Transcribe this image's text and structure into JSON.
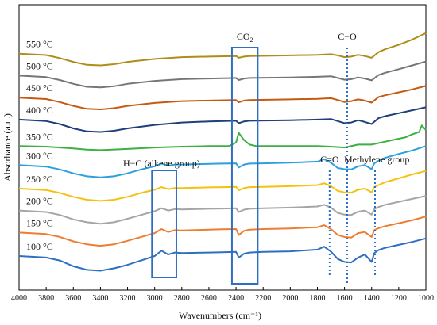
{
  "chart_data": {
    "type": "line",
    "title": "",
    "xlabel": "Wavenumbers (cm⁻¹)",
    "ylabel": "Absorbance (a.u.)",
    "xlim": [
      4000,
      1000
    ],
    "x_reversed": true,
    "x_ticks": [
      "4000",
      "3800",
      "3600",
      "3400",
      "3200",
      "3000",
      "2800",
      "2600",
      "2400",
      "2200",
      "2000",
      "1800",
      "1600",
      "1400",
      "1200",
      "1000"
    ],
    "y_ticks_shown": false,
    "grid": false,
    "series": [
      {
        "name": "100 °C",
        "color": "#2f6fc0",
        "offset": 0.5,
        "x": [
          4000,
          3800,
          3700,
          3600,
          3500,
          3400,
          3300,
          3200,
          3100,
          3000,
          2950,
          2900,
          2850,
          2800,
          2600,
          2500,
          2400,
          2380,
          2340,
          2300,
          2200,
          2000,
          1800,
          1750,
          1700,
          1650,
          1600,
          1550,
          1500,
          1450,
          1400,
          1380,
          1350,
          1300,
          1200,
          1100,
          1000
        ],
        "y": [
          0.5,
          0.45,
          0.35,
          0.15,
          0.03,
          0.0,
          0.08,
          0.2,
          0.35,
          0.5,
          0.68,
          0.55,
          0.62,
          0.6,
          0.62,
          0.63,
          0.64,
          0.45,
          0.58,
          0.62,
          0.64,
          0.66,
          0.72,
          0.82,
          0.65,
          0.4,
          0.3,
          0.28,
          0.45,
          0.55,
          0.3,
          0.6,
          0.7,
          0.78,
          0.88,
          0.98,
          1.1
        ]
      },
      {
        "name": "150 °C",
        "color": "#ed7d31",
        "offset": 1.3,
        "x": [
          4000,
          3800,
          3700,
          3600,
          3500,
          3400,
          3300,
          3200,
          3100,
          3000,
          2950,
          2900,
          2850,
          2800,
          2600,
          2500,
          2400,
          2380,
          2340,
          2300,
          2200,
          2000,
          1800,
          1750,
          1700,
          1650,
          1600,
          1550,
          1500,
          1450,
          1400,
          1380,
          1350,
          1300,
          1200,
          1100,
          1000
        ],
        "y": [
          0.5,
          0.45,
          0.35,
          0.2,
          0.1,
          0.05,
          0.1,
          0.22,
          0.35,
          0.48,
          0.62,
          0.52,
          0.58,
          0.57,
          0.6,
          0.61,
          0.62,
          0.42,
          0.56,
          0.6,
          0.62,
          0.64,
          0.68,
          0.75,
          0.62,
          0.42,
          0.35,
          0.33,
          0.48,
          0.52,
          0.35,
          0.58,
          0.65,
          0.72,
          0.82,
          0.92,
          1.05
        ]
      },
      {
        "name": "200 °C",
        "color": "#a5a5a5",
        "offset": 2.05,
        "x": [
          4000,
          3800,
          3700,
          3600,
          3500,
          3400,
          3300,
          3200,
          3100,
          3000,
          2950,
          2900,
          2850,
          2800,
          2600,
          2500,
          2400,
          2380,
          2340,
          2300,
          2200,
          2000,
          1800,
          1750,
          1700,
          1650,
          1600,
          1550,
          1500,
          1450,
          1400,
          1380,
          1350,
          1300,
          1200,
          1100,
          1000
        ],
        "y": [
          0.5,
          0.45,
          0.35,
          0.2,
          0.1,
          0.05,
          0.1,
          0.22,
          0.35,
          0.48,
          0.58,
          0.5,
          0.55,
          0.54,
          0.56,
          0.57,
          0.58,
          0.45,
          0.53,
          0.56,
          0.58,
          0.6,
          0.64,
          0.7,
          0.6,
          0.42,
          0.36,
          0.35,
          0.46,
          0.5,
          0.36,
          0.55,
          0.62,
          0.7,
          0.8,
          0.9,
          1.0
        ]
      },
      {
        "name": "250 °C",
        "color": "#f4c20d",
        "offset": 2.8,
        "x": [
          4000,
          3800,
          3700,
          3600,
          3500,
          3400,
          3300,
          3200,
          3100,
          3000,
          2950,
          2900,
          2850,
          2800,
          2600,
          2500,
          2400,
          2380,
          2340,
          2300,
          2200,
          2000,
          1800,
          1750,
          1700,
          1650,
          1600,
          1550,
          1500,
          1450,
          1400,
          1380,
          1350,
          1300,
          1200,
          1100,
          1000
        ],
        "y": [
          0.5,
          0.45,
          0.35,
          0.22,
          0.12,
          0.08,
          0.12,
          0.22,
          0.35,
          0.46,
          0.55,
          0.48,
          0.52,
          0.52,
          0.54,
          0.55,
          0.56,
          0.44,
          0.52,
          0.55,
          0.56,
          0.58,
          0.62,
          0.68,
          0.58,
          0.42,
          0.37,
          0.36,
          0.46,
          0.5,
          0.37,
          0.55,
          0.62,
          0.72,
          0.85,
          0.98,
          1.1
        ]
      },
      {
        "name": "300 °C",
        "color": "#2aa1dd",
        "offset": 3.6,
        "x": [
          4000,
          3800,
          3700,
          3600,
          3500,
          3400,
          3300,
          3200,
          3100,
          3000,
          2950,
          2900,
          2850,
          2800,
          2600,
          2500,
          2400,
          2380,
          2340,
          2300,
          2200,
          2000,
          1800,
          1750,
          1700,
          1650,
          1600,
          1550,
          1500,
          1450,
          1400,
          1380,
          1350,
          1300,
          1200,
          1100,
          1000
        ],
        "y": [
          0.5,
          0.45,
          0.35,
          0.22,
          0.12,
          0.08,
          0.12,
          0.22,
          0.35,
          0.46,
          0.55,
          0.48,
          0.52,
          0.52,
          0.54,
          0.55,
          0.56,
          0.42,
          0.52,
          0.55,
          0.56,
          0.58,
          0.62,
          0.7,
          0.58,
          0.4,
          0.36,
          0.35,
          0.46,
          0.5,
          0.36,
          0.56,
          0.65,
          0.75,
          0.88,
          1.0,
          1.15
        ]
      },
      {
        "name": "350 °C",
        "color": "#3cb043",
        "offset": 4.45,
        "x": [
          4000,
          3800,
          3600,
          3500,
          3400,
          3200,
          3000,
          2800,
          2600,
          2450,
          2400,
          2380,
          2360,
          2340,
          2300,
          2250,
          2200,
          2000,
          1800,
          1700,
          1600,
          1500,
          1400,
          1300,
          1200,
          1150,
          1100,
          1050,
          1030,
          1000
        ],
        "y": [
          0.3,
          0.28,
          0.22,
          0.18,
          0.16,
          0.2,
          0.25,
          0.28,
          0.3,
          0.3,
          0.42,
          0.75,
          0.62,
          0.5,
          0.35,
          0.3,
          0.3,
          0.3,
          0.3,
          0.28,
          0.25,
          0.35,
          0.35,
          0.45,
          0.55,
          0.6,
          0.7,
          0.78,
          1.0,
          0.85
        ]
      },
      {
        "name": "400 °C",
        "color": "#1f3f7a",
        "offset": 5.15,
        "x": [
          4000,
          3800,
          3700,
          3600,
          3500,
          3400,
          3300,
          3200,
          3000,
          2800,
          2600,
          2400,
          2380,
          2340,
          2300,
          2000,
          1800,
          1700,
          1650,
          1600,
          1550,
          1500,
          1450,
          1400,
          1350,
          1300,
          1200,
          1100,
          1000
        ],
        "y": [
          0.5,
          0.45,
          0.35,
          0.2,
          0.1,
          0.08,
          0.12,
          0.2,
          0.32,
          0.4,
          0.44,
          0.46,
          0.38,
          0.44,
          0.46,
          0.48,
          0.5,
          0.52,
          0.45,
          0.38,
          0.4,
          0.48,
          0.42,
          0.35,
          0.55,
          0.62,
          0.72,
          0.82,
          0.92
        ]
      },
      {
        "name": "450 °C",
        "color": "#c55a11",
        "offset": 5.9,
        "x": [
          4000,
          3800,
          3700,
          3600,
          3500,
          3400,
          3300,
          3200,
          3000,
          2800,
          2600,
          2400,
          2380,
          2340,
          2300,
          2000,
          1800,
          1700,
          1650,
          1600,
          1550,
          1500,
          1450,
          1400,
          1350,
          1300,
          1200,
          1100,
          1000
        ],
        "y": [
          0.5,
          0.45,
          0.35,
          0.22,
          0.12,
          0.1,
          0.14,
          0.22,
          0.32,
          0.38,
          0.4,
          0.42,
          0.34,
          0.4,
          0.42,
          0.44,
          0.46,
          0.48,
          0.42,
          0.35,
          0.38,
          0.44,
          0.4,
          0.33,
          0.52,
          0.58,
          0.68,
          0.78,
          0.9
        ]
      },
      {
        "name": "500 °C",
        "color": "#767676",
        "offset": 6.65,
        "x": [
          4000,
          3800,
          3700,
          3600,
          3500,
          3400,
          3300,
          3200,
          3000,
          2800,
          2600,
          2400,
          2380,
          2340,
          2300,
          2000,
          1800,
          1700,
          1650,
          1600,
          1550,
          1500,
          1450,
          1400,
          1350,
          1300,
          1200,
          1100,
          1000
        ],
        "y": [
          0.5,
          0.45,
          0.35,
          0.22,
          0.12,
          0.1,
          0.14,
          0.22,
          0.32,
          0.38,
          0.4,
          0.42,
          0.35,
          0.4,
          0.42,
          0.44,
          0.46,
          0.48,
          0.42,
          0.36,
          0.38,
          0.44,
          0.4,
          0.34,
          0.52,
          0.6,
          0.72,
          0.85,
          0.98
        ]
      },
      {
        "name": "550 °C",
        "color": "#b08d1a",
        "offset": 7.4,
        "x": [
          4000,
          3800,
          3700,
          3600,
          3500,
          3400,
          3300,
          3200,
          3000,
          2800,
          2600,
          2400,
          2380,
          2340,
          2300,
          2000,
          1800,
          1700,
          1650,
          1600,
          1550,
          1500,
          1450,
          1400,
          1350,
          1300,
          1200,
          1100,
          1000
        ],
        "y": [
          0.5,
          0.45,
          0.35,
          0.22,
          0.12,
          0.1,
          0.14,
          0.22,
          0.32,
          0.38,
          0.4,
          0.42,
          0.36,
          0.4,
          0.42,
          0.44,
          0.46,
          0.48,
          0.44,
          0.38,
          0.4,
          0.46,
          0.42,
          0.36,
          0.55,
          0.65,
          0.8,
          0.98,
          1.2
        ]
      }
    ],
    "annotations": {
      "co2": {
        "label": "CO",
        "sub": "2",
        "x_range": [
          2430,
          2240
        ]
      },
      "alkene": {
        "label": "H−C (alkene group)",
        "x_range": [
          3020,
          2840
        ]
      },
      "co_single": {
        "label": "C−O",
        "x": 1580
      },
      "co_double": {
        "label": "C=O",
        "x": 1710
      },
      "methylene": {
        "label": "Methylene group",
        "x": 1375
      }
    },
    "box_color": "#2f6fc0"
  }
}
